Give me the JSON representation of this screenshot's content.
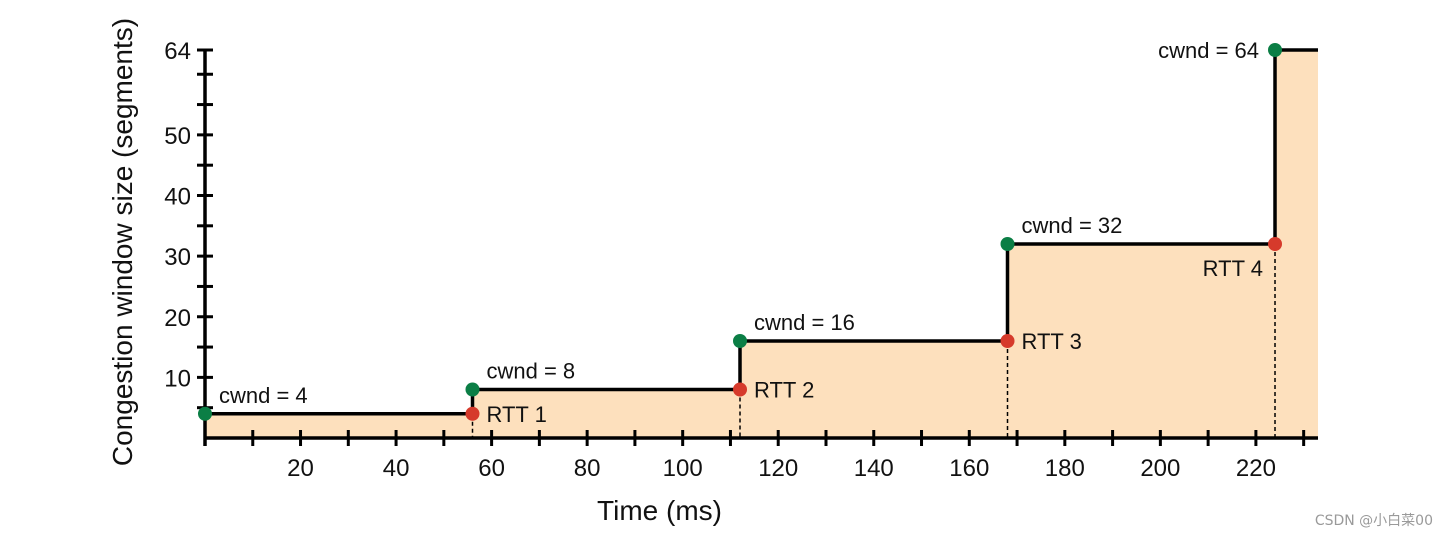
{
  "chart_data": {
    "type": "area",
    "title": "",
    "xlabel": "Time (ms)",
    "ylabel": "Congestion window size (segments)",
    "xlim": [
      0,
      233
    ],
    "ylim": [
      0,
      64
    ],
    "x_ticks": [
      20,
      40,
      60,
      80,
      100,
      120,
      140,
      160,
      180,
      200,
      220
    ],
    "y_ticks": [
      10,
      20,
      30,
      40,
      50,
      64
    ],
    "grid": false,
    "legend": "none",
    "series": [
      {
        "step_x": [
          0,
          56,
          112,
          168,
          224,
          233
        ],
        "step_y": [
          4,
          8,
          16,
          32,
          64,
          64
        ]
      }
    ],
    "cwnd_points": [
      {
        "x": 0,
        "y": 4,
        "label": "cwnd = 4"
      },
      {
        "x": 56,
        "y": 8,
        "label": "cwnd = 8"
      },
      {
        "x": 112,
        "y": 16,
        "label": "cwnd = 16"
      },
      {
        "x": 168,
        "y": 32,
        "label": "cwnd = 32"
      },
      {
        "x": 224,
        "y": 64,
        "label": "cwnd = 64"
      }
    ],
    "rtt_points": [
      {
        "x": 56,
        "y": 4,
        "label": "RTT 1"
      },
      {
        "x": 112,
        "y": 8,
        "label": "RTT 2"
      },
      {
        "x": 168,
        "y": 16,
        "label": "RTT 3"
      },
      {
        "x": 224,
        "y": 32,
        "label": "RTT 4"
      }
    ],
    "colors": {
      "fill": "#fde0bd",
      "line": "#000000",
      "cwnd_marker": "#0b7e45",
      "rtt_marker": "#d63a2b"
    }
  },
  "watermark": "CSDN @小白菜00"
}
